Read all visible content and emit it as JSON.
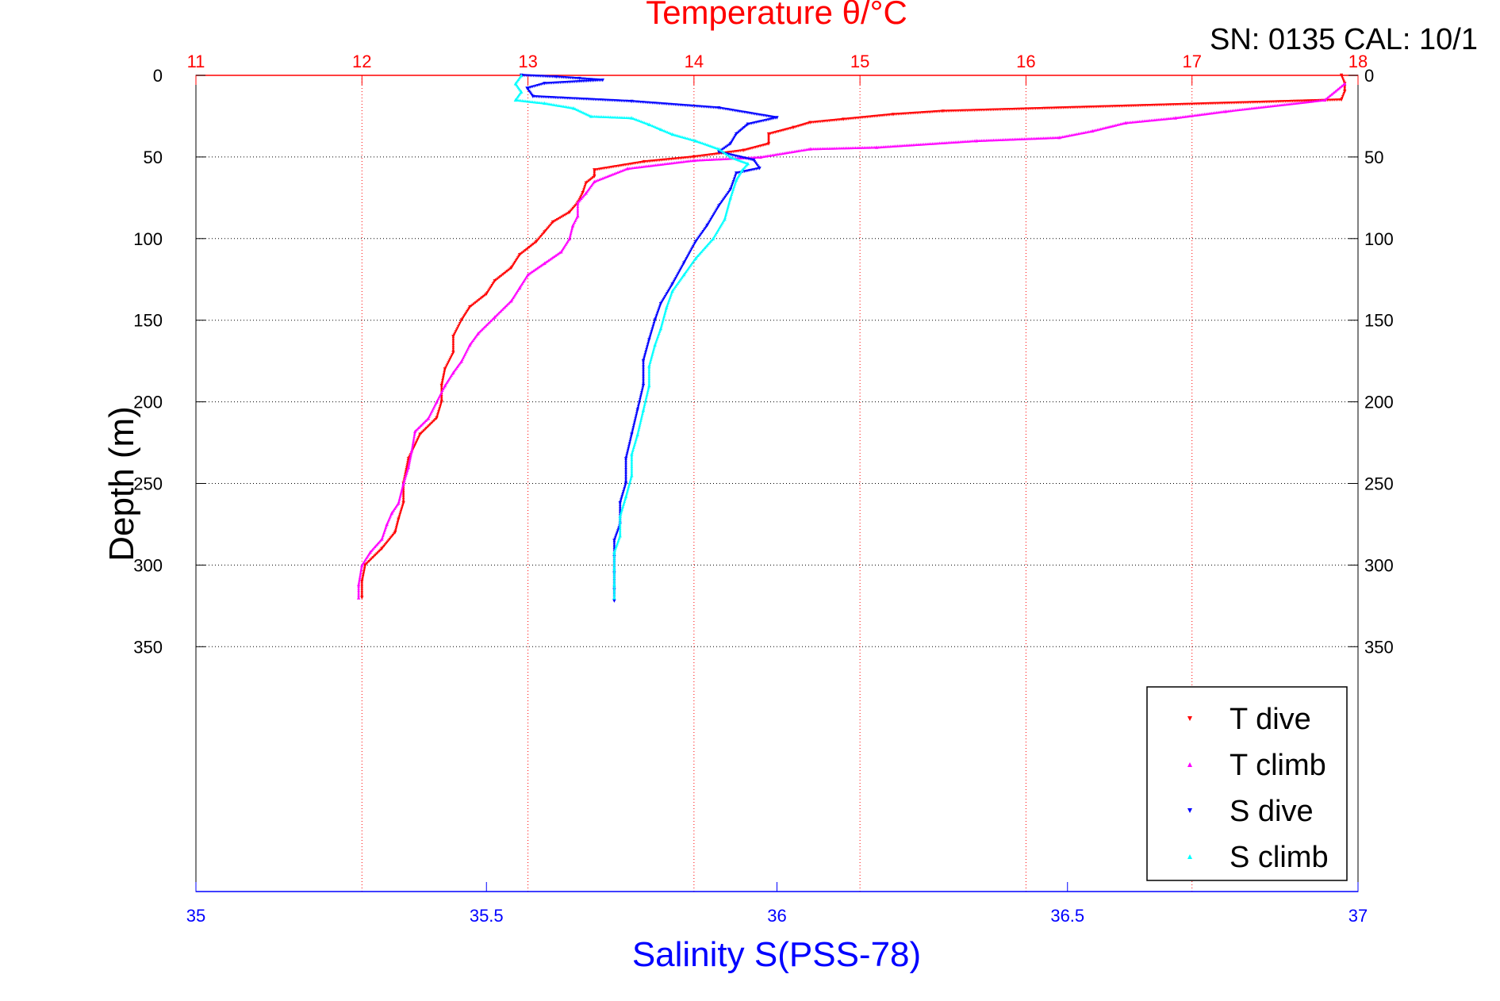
{
  "chart_data": {
    "type": "scatter",
    "title": "Temperature θ/°C",
    "header_text": "SN: 0135  CAL: 10/1",
    "ylabel": "Depth (m)",
    "xlabel_bottom": "Salinity S(PSS-78)",
    "y_axis": {
      "min": 0,
      "max": 500,
      "reversed": true,
      "ticks": [
        0,
        50,
        100,
        150,
        200,
        250,
        300,
        350
      ],
      "tick_labels": [
        "0",
        "50",
        "100",
        "150",
        "200",
        "250",
        "300",
        "350"
      ]
    },
    "x_axis_top": {
      "quantity": "temperature",
      "min": 11,
      "max": 18,
      "ticks": [
        11,
        12,
        13,
        14,
        15,
        16,
        17,
        18
      ],
      "tick_labels": [
        "11",
        "12",
        "13",
        "14",
        "15",
        "16",
        "17",
        "18"
      ],
      "color": "#ff0000"
    },
    "x_axis_bottom": {
      "quantity": "salinity",
      "min": 35,
      "max": 37,
      "ticks": [
        35,
        35.5,
        36,
        36.5,
        37
      ],
      "tick_labels": [
        "35",
        "35.5",
        "36",
        "36.5",
        "37"
      ],
      "color": "#0000ff"
    },
    "grid": true,
    "legend": {
      "placement": "bottom-right"
    },
    "series": [
      {
        "name": "T dive",
        "axis": "temperature",
        "color": "#ff0000",
        "marker": "triangle-down",
        "points": [
          [
            17.9,
            0
          ],
          [
            17.92,
            5
          ],
          [
            17.92,
            10
          ],
          [
            17.9,
            15
          ],
          [
            15.5,
            22
          ],
          [
            15.2,
            24
          ],
          [
            14.9,
            27
          ],
          [
            14.7,
            29
          ],
          [
            14.6,
            32
          ],
          [
            14.45,
            36
          ],
          [
            14.45,
            42
          ],
          [
            14.3,
            46
          ],
          [
            14.0,
            50
          ],
          [
            13.7,
            53
          ],
          [
            13.4,
            58
          ],
          [
            13.4,
            62
          ],
          [
            13.35,
            66
          ],
          [
            13.33,
            72
          ],
          [
            13.3,
            78
          ],
          [
            13.25,
            84
          ],
          [
            13.15,
            90
          ],
          [
            13.1,
            96
          ],
          [
            13.05,
            102
          ],
          [
            12.95,
            110
          ],
          [
            12.9,
            118
          ],
          [
            12.8,
            126
          ],
          [
            12.75,
            134
          ],
          [
            12.65,
            142
          ],
          [
            12.6,
            150
          ],
          [
            12.55,
            160
          ],
          [
            12.55,
            170
          ],
          [
            12.5,
            180
          ],
          [
            12.48,
            190
          ],
          [
            12.48,
            200
          ],
          [
            12.45,
            210
          ],
          [
            12.35,
            220
          ],
          [
            12.28,
            235
          ],
          [
            12.25,
            250
          ],
          [
            12.25,
            262
          ],
          [
            12.22,
            272
          ],
          [
            12.2,
            280
          ],
          [
            12.12,
            290
          ],
          [
            12.02,
            300
          ],
          [
            12.0,
            310
          ],
          [
            12.0,
            320
          ]
        ]
      },
      {
        "name": "T climb",
        "axis": "temperature",
        "color": "#ff00ff",
        "marker": "triangle-up",
        "points": [
          [
            17.92,
            5
          ],
          [
            17.8,
            15
          ],
          [
            17.2,
            22
          ],
          [
            16.9,
            26
          ],
          [
            16.6,
            29
          ],
          [
            16.4,
            34
          ],
          [
            16.2,
            38
          ],
          [
            15.7,
            40
          ],
          [
            15.1,
            44
          ],
          [
            14.7,
            45
          ],
          [
            14.4,
            50
          ],
          [
            14.0,
            52
          ],
          [
            13.6,
            57
          ],
          [
            13.4,
            65
          ],
          [
            13.35,
            72
          ],
          [
            13.3,
            78
          ],
          [
            13.3,
            86
          ],
          [
            13.27,
            92
          ],
          [
            13.25,
            100
          ],
          [
            13.2,
            108
          ],
          [
            13.1,
            115
          ],
          [
            13.0,
            122
          ],
          [
            12.95,
            130
          ],
          [
            12.9,
            138
          ],
          [
            12.8,
            148
          ],
          [
            12.7,
            158
          ],
          [
            12.65,
            165
          ],
          [
            12.6,
            175
          ],
          [
            12.55,
            182
          ],
          [
            12.5,
            190
          ],
          [
            12.45,
            200
          ],
          [
            12.4,
            210
          ],
          [
            12.32,
            218
          ],
          [
            12.3,
            230
          ],
          [
            12.28,
            240
          ],
          [
            12.25,
            250
          ],
          [
            12.22,
            262
          ],
          [
            12.18,
            268
          ],
          [
            12.15,
            275
          ],
          [
            12.12,
            284
          ],
          [
            12.05,
            292
          ],
          [
            12.0,
            300
          ],
          [
            11.98,
            312
          ],
          [
            11.98,
            320
          ]
        ]
      },
      {
        "name": "S dive",
        "axis": "salinity",
        "color": "#0000ff",
        "marker": "triangle-down",
        "points": [
          [
            35.56,
            0
          ],
          [
            35.62,
            1
          ],
          [
            35.66,
            2
          ],
          [
            35.7,
            3
          ],
          [
            35.6,
            5
          ],
          [
            35.57,
            8
          ],
          [
            35.58,
            13
          ],
          [
            35.75,
            16
          ],
          [
            35.9,
            20
          ],
          [
            36.0,
            26
          ],
          [
            35.95,
            30
          ],
          [
            35.93,
            36
          ],
          [
            35.92,
            42
          ],
          [
            35.9,
            47
          ],
          [
            35.96,
            52
          ],
          [
            35.97,
            57
          ],
          [
            35.93,
            60
          ],
          [
            35.92,
            70
          ],
          [
            35.9,
            80
          ],
          [
            35.88,
            92
          ],
          [
            35.86,
            102
          ],
          [
            35.84,
            115
          ],
          [
            35.82,
            128
          ],
          [
            35.8,
            140
          ],
          [
            35.79,
            150
          ],
          [
            35.78,
            162
          ],
          [
            35.77,
            175
          ],
          [
            35.77,
            190
          ],
          [
            35.76,
            205
          ],
          [
            35.75,
            220
          ],
          [
            35.74,
            235
          ],
          [
            35.74,
            250
          ],
          [
            35.73,
            262
          ],
          [
            35.73,
            275
          ],
          [
            35.72,
            285
          ],
          [
            35.72,
            295
          ],
          [
            35.72,
            305
          ],
          [
            35.72,
            315
          ],
          [
            35.72,
            322
          ]
        ]
      },
      {
        "name": "S climb",
        "axis": "salinity",
        "color": "#00ffff",
        "marker": "triangle-up",
        "points": [
          [
            35.56,
            0
          ],
          [
            35.55,
            5
          ],
          [
            35.56,
            10
          ],
          [
            35.55,
            15
          ],
          [
            35.6,
            17
          ],
          [
            35.65,
            20
          ],
          [
            35.68,
            25
          ],
          [
            35.75,
            26
          ],
          [
            35.78,
            30
          ],
          [
            35.8,
            33
          ],
          [
            35.82,
            36
          ],
          [
            35.86,
            40
          ],
          [
            35.9,
            45
          ],
          [
            35.92,
            50
          ],
          [
            35.95,
            54
          ],
          [
            35.94,
            58
          ],
          [
            35.93,
            64
          ],
          [
            35.92,
            75
          ],
          [
            35.91,
            88
          ],
          [
            35.89,
            100
          ],
          [
            35.86,
            112
          ],
          [
            35.84,
            122
          ],
          [
            35.82,
            132
          ],
          [
            35.81,
            142
          ],
          [
            35.8,
            155
          ],
          [
            35.79,
            165
          ],
          [
            35.78,
            178
          ],
          [
            35.78,
            190
          ],
          [
            35.77,
            205
          ],
          [
            35.76,
            220
          ],
          [
            35.75,
            232
          ],
          [
            35.75,
            245
          ],
          [
            35.74,
            258
          ],
          [
            35.73,
            270
          ],
          [
            35.73,
            282
          ],
          [
            35.72,
            292
          ],
          [
            35.72,
            302
          ],
          [
            35.72,
            312
          ],
          [
            35.72,
            320
          ]
        ]
      }
    ]
  }
}
